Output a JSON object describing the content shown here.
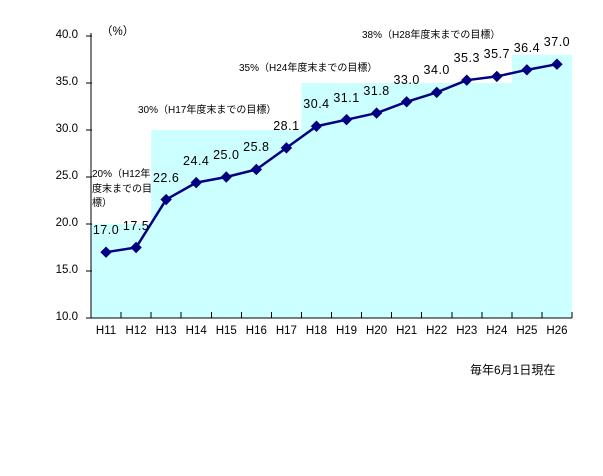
{
  "chart_data": {
    "type": "line",
    "title": "",
    "unit_label": "（%）",
    "footnote": "毎年6月1日現在",
    "categories": [
      "H11",
      "H12",
      "H13",
      "H14",
      "H15",
      "H16",
      "H17",
      "H18",
      "H19",
      "H20",
      "H21",
      "H22",
      "H23",
      "H24",
      "H25",
      "H26"
    ],
    "values": [
      17.0,
      17.5,
      22.6,
      24.4,
      25.0,
      25.8,
      28.1,
      30.4,
      31.1,
      31.8,
      33.0,
      34.0,
      35.3,
      35.7,
      36.4,
      37.0
    ],
    "ylim": [
      10.0,
      40.0
    ],
    "ytick_step": 5.0,
    "ytick_labels": [
      "10.0",
      "15.0",
      "20.0",
      "25.0",
      "30.0",
      "35.0",
      "40.0"
    ],
    "grid": false,
    "legend": "none",
    "series_color": "#000080",
    "target_area_color": "#ccffff",
    "axis_color": "#000000",
    "targets": [
      {
        "level": 20,
        "label": "20%（H12年度末までの目標）",
        "from_boundary": 0,
        "to_boundary": 2
      },
      {
        "level": 30,
        "label": "30%（H17年度末までの目標）",
        "from_boundary": 2,
        "to_boundary": 7
      },
      {
        "level": 35,
        "label": "35%（H24年度末までの目標）",
        "from_boundary": 7,
        "to_boundary": 14
      },
      {
        "level": 38,
        "label": "38%（H28年度末までの目標）",
        "from_boundary": 14,
        "to_boundary": 16
      }
    ]
  }
}
